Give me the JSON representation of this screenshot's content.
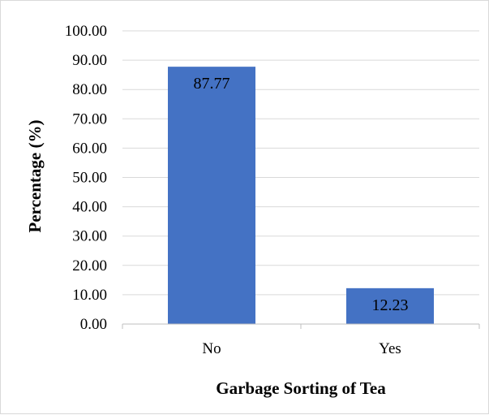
{
  "chart_data": {
    "type": "bar",
    "categories": [
      "No",
      "Yes"
    ],
    "values": [
      87.77,
      12.23
    ],
    "data_labels": [
      "87.77",
      "12.23"
    ],
    "xlabel": "Garbage Sorting of Tea",
    "ylabel": "Percentage (%)",
    "ylim": [
      0,
      100
    ],
    "yticks": [
      "0.00",
      "10.00",
      "20.00",
      "30.00",
      "40.00",
      "50.00",
      "60.00",
      "70.00",
      "80.00",
      "90.00",
      "100.00"
    ],
    "grid": true,
    "bar_color": "#4472c4",
    "grid_color": "#d9d9d9"
  }
}
